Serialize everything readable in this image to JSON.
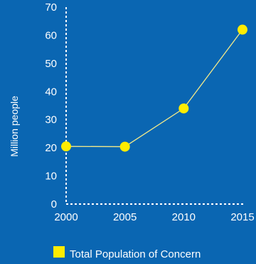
{
  "chart_data": {
    "type": "line",
    "x": [
      2000,
      2005,
      2010,
      2015
    ],
    "series": [
      {
        "name": "Total Population of Concern",
        "values": [
          20.5,
          20.4,
          34.0,
          62.0
        ]
      }
    ],
    "ylabel": "Million people",
    "xlabel": "",
    "ylim": [
      0,
      70
    ],
    "y_ticks": [
      "0",
      "10",
      "20",
      "30",
      "40",
      "50",
      "60",
      "70"
    ],
    "x_ticks": [
      "2000",
      "2005",
      "2010",
      "2015"
    ],
    "grid": false,
    "axis_style": "dashed",
    "legend_position": "bottom",
    "colors": {
      "background": "#0a66b2",
      "series": "#ffec00",
      "line": "#f3ea8a",
      "axis": "#ffffff",
      "text": "#ffffff"
    }
  }
}
